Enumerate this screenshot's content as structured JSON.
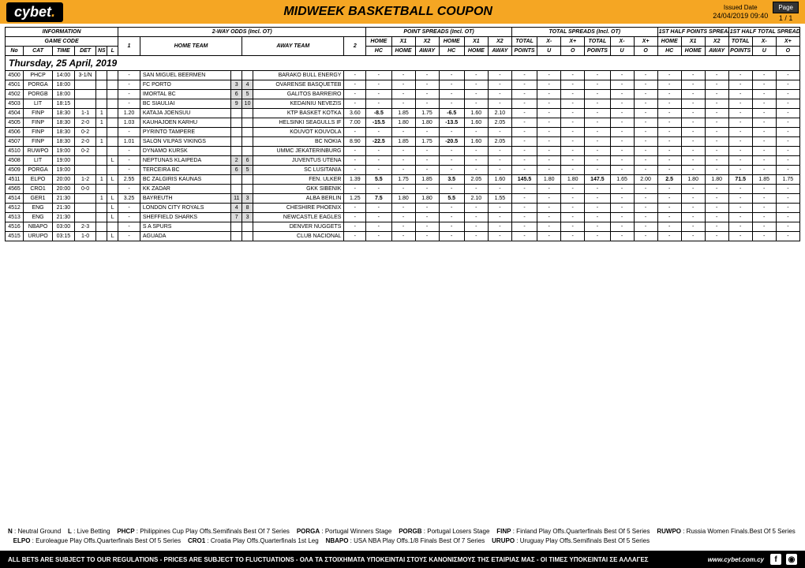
{
  "header": {
    "logo_prefix": "cy",
    "logo_suffix": "bet",
    "title": "MIDWEEK BASKETBALL COUPON",
    "issued_label": "Issued Date",
    "issued_value": "24/04/2019 09:40",
    "page_label": "Page",
    "page_value": "1 / 1"
  },
  "groups": {
    "info": "INFORMATION",
    "two_way": "2-WAY ODDS (Incl. OT)",
    "ps": "POINT SPREADS (Incl. OT)",
    "ts": "TOTAL SPREADS (Incl. OT)",
    "hps": "1ST HALF POINTS SPREADS",
    "hts": "1ST HALF TOTAL SPREADS"
  },
  "sub": {
    "gc": "GAME CODE",
    "ht": "HOME TEAM",
    "at": "AWAY TEAM",
    "no": "No",
    "cat": "CAT",
    "time": "TIME",
    "det": "DET",
    "ns": "NS",
    "l": "L",
    "one": "1",
    "two": "2",
    "home": "HOME",
    "x1": "X1",
    "x2": "X2",
    "hc": "HC",
    "away": "AWAY",
    "total": "TOTAL",
    "xm": "X-",
    "xp": "X+",
    "u": "U",
    "o": "O",
    "points": "POINTS"
  },
  "date_row": "Thursday, 25 April, 2019",
  "rows": [
    {
      "no": "4500",
      "cat": "PHCP",
      "time": "14:00",
      "det": "3-1/N",
      "ns": "",
      "l": "",
      "o1": "-",
      "home": "SAN MIGUEL BEERMEN",
      "s1": "",
      "s2": "",
      "away": "BARAKO BULL ENERGY",
      "o2": "-",
      "ps": [
        "-",
        "-",
        "-",
        "-",
        "-",
        "-"
      ],
      "ts": [
        "-",
        "-",
        "-",
        "-",
        "-",
        "-"
      ],
      "hps": [
        "-",
        "-",
        "-"
      ],
      "hts": [
        "-",
        "-",
        "-"
      ]
    },
    {
      "no": "4501",
      "cat": "PORGA",
      "time": "18:00",
      "det": "",
      "ns": "",
      "l": "",
      "o1": "-",
      "home": "FC PORTO",
      "s1": "3",
      "s2": "4",
      "away": "OVARENSE BASQUETEB",
      "o2": "-",
      "ps": [
        "-",
        "-",
        "-",
        "-",
        "-",
        "-"
      ],
      "ts": [
        "-",
        "-",
        "-",
        "-",
        "-",
        "-"
      ],
      "hps": [
        "-",
        "-",
        "-"
      ],
      "hts": [
        "-",
        "-",
        "-"
      ]
    },
    {
      "no": "4502",
      "cat": "PORGB",
      "time": "18:00",
      "det": "",
      "ns": "",
      "l": "",
      "o1": "-",
      "home": "IMORTAL BC",
      "s1": "6",
      "s2": "5",
      "away": "GALITOS BARREIRO",
      "o2": "-",
      "ps": [
        "-",
        "-",
        "-",
        "-",
        "-",
        "-"
      ],
      "ts": [
        "-",
        "-",
        "-",
        "-",
        "-",
        "-"
      ],
      "hps": [
        "-",
        "-",
        "-"
      ],
      "hts": [
        "-",
        "-",
        "-"
      ]
    },
    {
      "no": "4503",
      "cat": "LIT",
      "time": "18:15",
      "det": "",
      "ns": "",
      "l": "",
      "o1": "-",
      "home": "BC SIAULIAI",
      "s1": "9",
      "s2": "10",
      "away": "KEDAINIU NEVEZIS",
      "o2": "-",
      "ps": [
        "-",
        "-",
        "-",
        "-",
        "-",
        "-"
      ],
      "ts": [
        "-",
        "-",
        "-",
        "-",
        "-",
        "-"
      ],
      "hps": [
        "-",
        "-",
        "-"
      ],
      "hts": [
        "-",
        "-",
        "-"
      ]
    },
    {
      "no": "4504",
      "cat": "FINP",
      "time": "18:30",
      "det": "1-1",
      "ns": "1",
      "l": "",
      "o1": "1.20",
      "home": "KATAJA JOENSUU",
      "s1": "",
      "s2": "",
      "away": "KTP BASKET KOTKA",
      "o2": "3.60",
      "ps": [
        "-8.5",
        "1.85",
        "1.75",
        "-6.5",
        "1.60",
        "2.10"
      ],
      "ts": [
        "-",
        "-",
        "-",
        "-",
        "-",
        "-"
      ],
      "hps": [
        "-",
        "-",
        "-"
      ],
      "hts": [
        "-",
        "-",
        "-"
      ]
    },
    {
      "no": "4505",
      "cat": "FINP",
      "time": "18:30",
      "det": "2-0",
      "ns": "1",
      "l": "",
      "o1": "1.03",
      "home": "KAUHAJOEN KARHU",
      "s1": "",
      "s2": "",
      "away": "HELSINKI SEAGULLS IF",
      "o2": "7.00",
      "ps": [
        "-15.5",
        "1.80",
        "1.80",
        "-13.5",
        "1.60",
        "2.05"
      ],
      "ts": [
        "-",
        "-",
        "-",
        "-",
        "-",
        "-"
      ],
      "hps": [
        "-",
        "-",
        "-"
      ],
      "hts": [
        "-",
        "-",
        "-"
      ]
    },
    {
      "no": "4506",
      "cat": "FINP",
      "time": "18:30",
      "det": "0-2",
      "ns": "",
      "l": "",
      "o1": "-",
      "home": "PYRINTO TAMPERE",
      "s1": "",
      "s2": "",
      "away": "KOUVOT KOUVOLA",
      "o2": "-",
      "ps": [
        "-",
        "-",
        "-",
        "-",
        "-",
        "-"
      ],
      "ts": [
        "-",
        "-",
        "-",
        "-",
        "-",
        "-"
      ],
      "hps": [
        "-",
        "-",
        "-"
      ],
      "hts": [
        "-",
        "-",
        "-"
      ]
    },
    {
      "no": "4507",
      "cat": "FINP",
      "time": "18:30",
      "det": "2-0",
      "ns": "1",
      "l": "",
      "o1": "1.01",
      "home": "SALON VILPAS VIKINGS",
      "s1": "",
      "s2": "",
      "away": "BC NOKIA",
      "o2": "8.90",
      "ps": [
        "-22.5",
        "1.85",
        "1.75",
        "-20.5",
        "1.60",
        "2.05"
      ],
      "ts": [
        "-",
        "-",
        "-",
        "-",
        "-",
        "-"
      ],
      "hps": [
        "-",
        "-",
        "-"
      ],
      "hts": [
        "-",
        "-",
        "-"
      ]
    },
    {
      "no": "4510",
      "cat": "RUWPO",
      "time": "19:00",
      "det": "0-2",
      "ns": "",
      "l": "",
      "o1": "-",
      "home": "DYNAMO KURSK",
      "s1": "",
      "s2": "",
      "away": "UMMC JEKATERINBURG",
      "o2": "-",
      "ps": [
        "-",
        "-",
        "-",
        "-",
        "-",
        "-"
      ],
      "ts": [
        "-",
        "-",
        "-",
        "-",
        "-",
        "-"
      ],
      "hps": [
        "-",
        "-",
        "-"
      ],
      "hts": [
        "-",
        "-",
        "-"
      ]
    },
    {
      "no": "4508",
      "cat": "LIT",
      "time": "19:00",
      "det": "",
      "ns": "",
      "l": "L",
      "o1": "-",
      "home": "NEPTUNAS KLAIPEDA",
      "s1": "2",
      "s2": "6",
      "away": "JUVENTUS UTENA",
      "o2": "-",
      "ps": [
        "-",
        "-",
        "-",
        "-",
        "-",
        "-"
      ],
      "ts": [
        "-",
        "-",
        "-",
        "-",
        "-",
        "-"
      ],
      "hps": [
        "-",
        "-",
        "-"
      ],
      "hts": [
        "-",
        "-",
        "-"
      ]
    },
    {
      "no": "4509",
      "cat": "PORGA",
      "time": "19:00",
      "det": "",
      "ns": "",
      "l": "",
      "o1": "-",
      "home": "TERCEIRA BC",
      "s1": "6",
      "s2": "5",
      "away": "SC LUSITANIA",
      "o2": "-",
      "ps": [
        "-",
        "-",
        "-",
        "-",
        "-",
        "-"
      ],
      "ts": [
        "-",
        "-",
        "-",
        "-",
        "-",
        "-"
      ],
      "hps": [
        "-",
        "-",
        "-"
      ],
      "hts": [
        "-",
        "-",
        "-"
      ]
    },
    {
      "no": "4511",
      "cat": "ELPO",
      "time": "20:00",
      "det": "1-2",
      "ns": "1",
      "l": "L",
      "o1": "2.55",
      "home": "BC ZALGIRIS KAUNAS",
      "s1": "",
      "s2": "",
      "away": "FEN. ULKER",
      "o2": "1.39",
      "ps": [
        "5.5",
        "1.75",
        "1.85",
        "3.5",
        "2.05",
        "1.60"
      ],
      "ts": [
        "145.5",
        "1.80",
        "1.80",
        "147.5",
        "1.65",
        "2.00"
      ],
      "hps": [
        "2.5",
        "1.80",
        "1.80"
      ],
      "hts": [
        "71.5",
        "1.85",
        "1.75"
      ]
    },
    {
      "no": "4565",
      "cat": "CRO1",
      "time": "20:00",
      "det": "0-0",
      "ns": "",
      "l": "",
      "o1": "-",
      "home": "KK ZADAR",
      "s1": "",
      "s2": "",
      "away": "GKK SIBENIK",
      "o2": "-",
      "ps": [
        "-",
        "-",
        "-",
        "-",
        "-",
        "-"
      ],
      "ts": [
        "-",
        "-",
        "-",
        "-",
        "-",
        "-"
      ],
      "hps": [
        "-",
        "-",
        "-"
      ],
      "hts": [
        "-",
        "-",
        "-"
      ]
    },
    {
      "no": "4514",
      "cat": "GER1",
      "time": "21:30",
      "det": "",
      "ns": "1",
      "l": "L",
      "o1": "3.25",
      "home": "BAYREUTH",
      "s1": "11",
      "s2": "3",
      "away": "ALBA BERLIN",
      "o2": "1.25",
      "ps": [
        "7.5",
        "1.80",
        "1.80",
        "5.5",
        "2.10",
        "1.55"
      ],
      "ts": [
        "-",
        "-",
        "-",
        "-",
        "-",
        "-"
      ],
      "hps": [
        "-",
        "-",
        "-"
      ],
      "hts": [
        "-",
        "-",
        "-"
      ]
    },
    {
      "no": "4512",
      "cat": "ENG",
      "time": "21:30",
      "det": "",
      "ns": "",
      "l": "L",
      "o1": "-",
      "home": "LONDON CITY ROYALS",
      "s1": "4",
      "s2": "8",
      "away": "CHESHIRE PHOENIX",
      "o2": "-",
      "ps": [
        "-",
        "-",
        "-",
        "-",
        "-",
        "-"
      ],
      "ts": [
        "-",
        "-",
        "-",
        "-",
        "-",
        "-"
      ],
      "hps": [
        "-",
        "-",
        "-"
      ],
      "hts": [
        "-",
        "-",
        "-"
      ]
    },
    {
      "no": "4513",
      "cat": "ENG",
      "time": "21:30",
      "det": "",
      "ns": "",
      "l": "L",
      "o1": "-",
      "home": "SHEFFIELD SHARKS",
      "s1": "7",
      "s2": "3",
      "away": "NEWCASTLE EAGLES",
      "o2": "-",
      "ps": [
        "-",
        "-",
        "-",
        "-",
        "-",
        "-"
      ],
      "ts": [
        "-",
        "-",
        "-",
        "-",
        "-",
        "-"
      ],
      "hps": [
        "-",
        "-",
        "-"
      ],
      "hts": [
        "-",
        "-",
        "-"
      ]
    },
    {
      "no": "4516",
      "cat": "NBAPO",
      "time": "03:00",
      "det": "2-3",
      "ns": "",
      "l": "",
      "o1": "-",
      "home": "S A SPURS",
      "s1": "",
      "s2": "",
      "away": "DENVER NUGGETS",
      "o2": "-",
      "ps": [
        "-",
        "-",
        "-",
        "-",
        "-",
        "-"
      ],
      "ts": [
        "-",
        "-",
        "-",
        "-",
        "-",
        "-"
      ],
      "hps": [
        "-",
        "-",
        "-"
      ],
      "hts": [
        "-",
        "-",
        "-"
      ]
    },
    {
      "no": "4515",
      "cat": "URUPO",
      "time": "03:15",
      "det": "1-0",
      "ns": "",
      "l": "L",
      "o1": "-",
      "home": "AGUADA",
      "s1": "",
      "s2": "",
      "away": "CLUB NACIONAL",
      "o2": "-",
      "ps": [
        "-",
        "-",
        "-",
        "-",
        "-",
        "-"
      ],
      "ts": [
        "-",
        "-",
        "-",
        "-",
        "-",
        "-"
      ],
      "hps": [
        "-",
        "-",
        "-"
      ],
      "hts": [
        "-",
        "-",
        "-"
      ]
    }
  ],
  "legend": [
    [
      "N",
      "Neutral Ground"
    ],
    [
      "L",
      "Live Betting"
    ],
    [
      "PHCP",
      "Philippines Cup Play Offs.Semifinals Best Of 7 Series"
    ],
    [
      "PORGA",
      "Portugal Winners Stage"
    ],
    [
      "PORGB",
      "Portugal Losers Stage"
    ],
    [
      "FINP",
      "Finland Play Offs.Quarterfinals Best Of 5 Series"
    ],
    [
      "RUWPO",
      "Russia Women Finals.Best Of 5 Series"
    ],
    [
      "ELPO",
      "Euroleague Play Offs.Quarterfinals Best Of 5 Series"
    ],
    [
      "CRO1",
      "Croatia Play Offs.Quarterfinals 1st Leg"
    ],
    [
      "NBAPO",
      "USA NBA Play Offs.1/8 Finals Best Of 7 Series"
    ],
    [
      "URUPO",
      "Uruguay Play Offs.Semifinals Best Of 5 Series"
    ]
  ],
  "bar_text": "ALL BETS ARE SUBJECT TO OUR REGULATIONS - PRICES ARE SUBJECT TO FLUCTUATIONS - ΟΛΑ ΤΑ ΣΤΟΙΧΗΜΑΤΑ ΥΠΟΚΕΙΝΤΑΙ ΣΤΟΥΣ ΚΑΝΟΝΙΣΜΟΥΣ ΤΗΣ ΕΤΑΙΡΙΑΣ ΜΑΣ - ΟΙ ΤΙΜΕΣ ΥΠΟΚΕΙΝΤΑΙ ΣΕ ΑΛΛΑΓΕΣ",
  "url": "www.cybet.com.cy",
  "colors": {
    "accent": "#f5a623",
    "score_bg": "#dcdcdc"
  }
}
